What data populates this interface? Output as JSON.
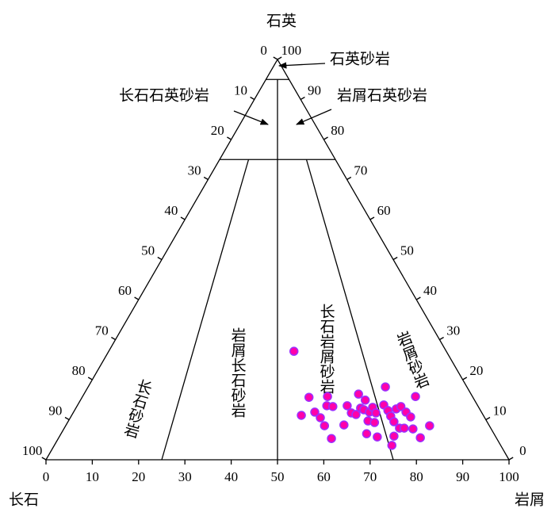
{
  "chart_data": {
    "type": "ternary",
    "apex_label": "石英",
    "left_label": "长石",
    "right_label": "岩屑",
    "bottom_ticks": [
      0,
      10,
      20,
      30,
      40,
      50,
      60,
      70,
      80,
      90,
      100
    ],
    "left_ticks": [
      0,
      10,
      20,
      30,
      40,
      50,
      60,
      70,
      80,
      90,
      100
    ],
    "right_ticks": [
      0,
      10,
      20,
      30,
      40,
      50,
      60,
      70,
      80,
      90,
      100
    ],
    "quartz_boundaries": [
      95,
      75
    ],
    "ratio_boundaries": [
      25,
      50,
      75
    ],
    "regions": [
      "石英砂岩",
      "长石石英砂岩",
      "岩屑石英砂岩",
      "长石砂岩",
      "岩屑长石砂岩",
      "长石岩屑砂岩",
      "岩屑砂岩"
    ],
    "point_color": "#ff00aa",
    "point_edge": "#9b30ff",
    "points": {
      "q": [
        27.1,
        15.6,
        11.1,
        11.9,
        10.5,
        8.5,
        15.8,
        13.5,
        13.3,
        8.7,
        5.3,
        13.5,
        11.7,
        16.4,
        12.9,
        11.3,
        14.9,
        12.5,
        11.9,
        13.1,
        11.7,
        9.7,
        9.3,
        6.5,
        5.7,
        18.2,
        13.7,
        12.3,
        10.9,
        12.7,
        13.3,
        9.5,
        7.9,
        5.9,
        3.6,
        11.9,
        10.7,
        7.9,
        7.7,
        15.8,
        5.5,
        8.5
      ],
      "l": [
        40.0,
        49.0,
        49.6,
        52.1,
        54.0,
        55.9,
        52.9,
        53.9,
        55.3,
        60.0,
        59.0,
        58.3,
        60.1,
        59.3,
        61.5,
        61.3,
        61.5,
        62.4,
        63.9,
        64.0,
        65.4,
        64.7,
        66.3,
        66.0,
        68.7,
        64.2,
        66.1,
        67.7,
        69.0,
        69.3,
        70.0,
        70.4,
        72.4,
        72.2,
        72.9,
        71.8,
        73.4,
        73.4,
        75.4,
        71.9,
        78.1,
        78.6
      ]
    }
  }
}
